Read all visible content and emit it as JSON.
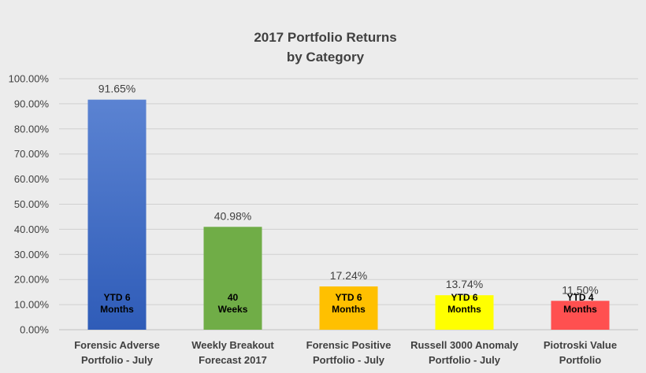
{
  "chart_data": {
    "type": "bar",
    "title": [
      "2017 Portfolio Returns",
      "by Category"
    ],
    "categories": [
      [
        "Forensic Adverse",
        "Portfolio - July"
      ],
      [
        "Weekly Breakout",
        "Forecast 2017"
      ],
      [
        "Forensic Positive",
        "Portfolio - July"
      ],
      [
        "Russell 3000 Anomaly",
        "Portfolio - July"
      ],
      [
        "Piotroski Value",
        "Portfolio"
      ]
    ],
    "values": [
      91.65,
      40.98,
      17.24,
      13.74,
      11.5
    ],
    "data_labels": [
      "91.65%",
      "40.98%",
      "17.24%",
      "13.74%",
      "11.50%"
    ],
    "bar_notes": [
      [
        "YTD 6",
        "Months"
      ],
      [
        "40",
        "Weeks"
      ],
      [
        "YTD 6",
        "Months"
      ],
      [
        "YTD 6",
        "Months"
      ],
      [
        "YTD 4",
        "Months"
      ]
    ],
    "bar_colors": [
      "#4a74c9",
      "#70ad47",
      "#ffc000",
      "#ffff00",
      "#ff5050"
    ],
    "ylim": [
      0,
      100
    ],
    "yticks": [
      0,
      10,
      20,
      30,
      40,
      50,
      60,
      70,
      80,
      90,
      100
    ],
    "ytick_labels": [
      "0.00%",
      "10.00%",
      "20.00%",
      "30.00%",
      "40.00%",
      "50.00%",
      "60.00%",
      "70.00%",
      "80.00%",
      "90.00%",
      "100.00%"
    ],
    "grid": true,
    "legend": "none"
  }
}
